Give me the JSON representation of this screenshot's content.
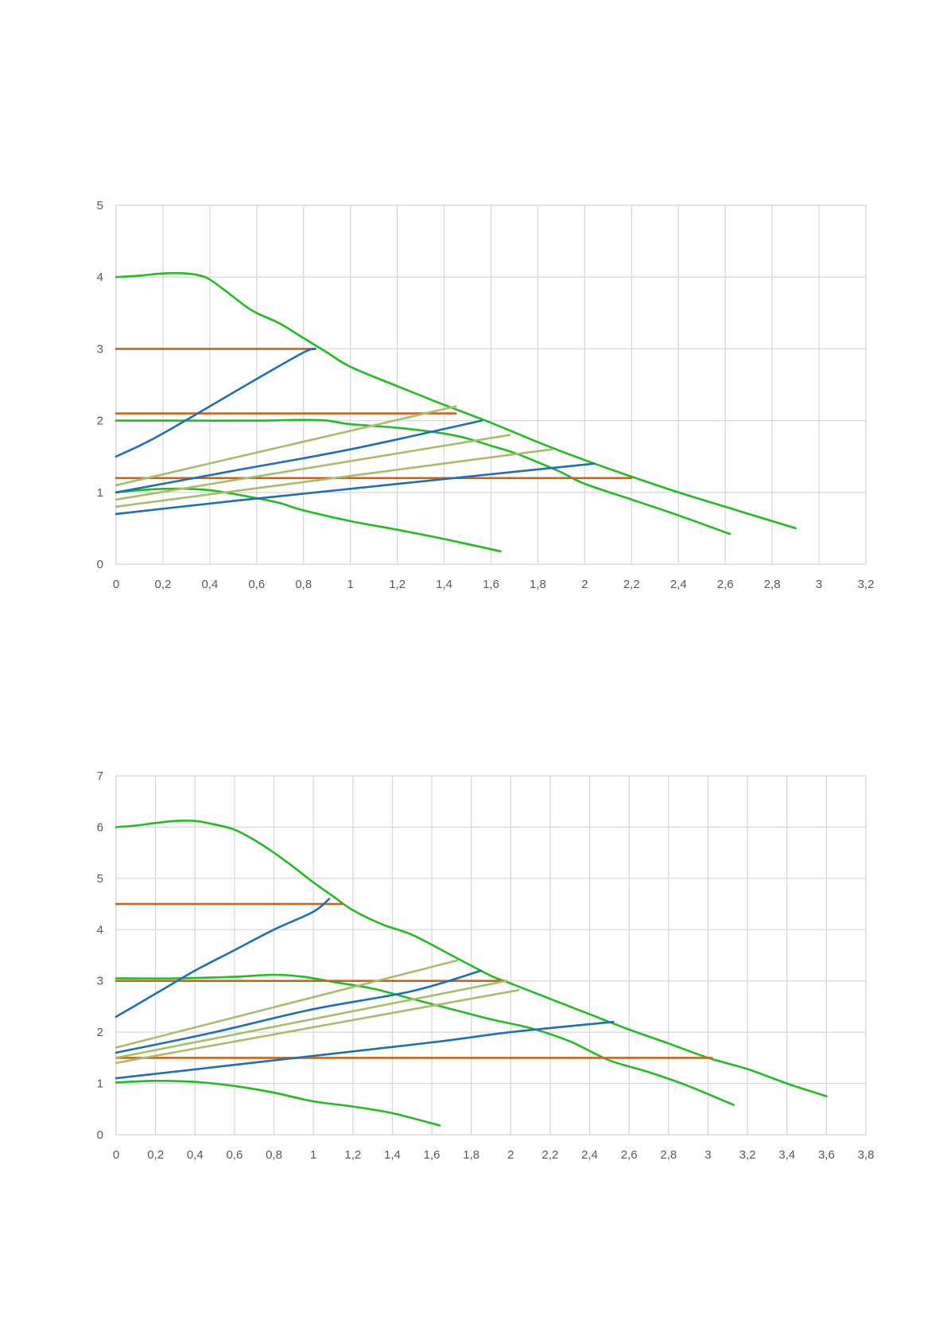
{
  "chart_data": [
    {
      "type": "line",
      "title": "",
      "xlabel": "",
      "ylabel": "",
      "xlim": [
        0,
        3.2
      ],
      "ylim": [
        0,
        5
      ],
      "x_tick_labels": [
        "0",
        "0,2",
        "0,4",
        "0,6",
        "0,8",
        "1",
        "1,2",
        "1,4",
        "1,6",
        "1,8",
        "2",
        "2,2",
        "2,4",
        "2,6",
        "2,8",
        "3",
        "3,2"
      ],
      "y_tick_labels": [
        "0",
        "1",
        "2",
        "3",
        "4",
        "5"
      ],
      "grid": true,
      "legend": "none",
      "series": [
        {
          "color": "#22bb22",
          "points": [
            [
              0,
              4.0
            ],
            [
              0.1,
              4.02
            ],
            [
              0.2,
              4.05
            ],
            [
              0.3,
              4.05
            ],
            [
              0.38,
              4.0
            ],
            [
              0.45,
              3.85
            ],
            [
              0.55,
              3.6
            ],
            [
              0.6,
              3.5
            ],
            [
              0.7,
              3.35
            ],
            [
              0.8,
              3.15
            ],
            [
              0.9,
              2.95
            ],
            [
              1.0,
              2.75
            ],
            [
              1.2,
              2.48
            ],
            [
              1.4,
              2.22
            ],
            [
              1.6,
              1.97
            ],
            [
              1.8,
              1.7
            ],
            [
              2.0,
              1.45
            ],
            [
              2.2,
              1.22
            ],
            [
              2.4,
              1.0
            ],
            [
              2.6,
              0.8
            ],
            [
              2.8,
              0.6
            ],
            [
              2.9,
              0.5
            ]
          ]
        },
        {
          "color": "#22bb22",
          "points": [
            [
              0,
              2.0
            ],
            [
              0.3,
              2.0
            ],
            [
              0.6,
              2.0
            ],
            [
              0.8,
              2.01
            ],
            [
              0.9,
              2.0
            ],
            [
              1.0,
              1.95
            ],
            [
              1.2,
              1.9
            ],
            [
              1.4,
              1.82
            ],
            [
              1.5,
              1.75
            ],
            [
              1.6,
              1.65
            ],
            [
              1.7,
              1.55
            ],
            [
              1.8,
              1.42
            ],
            [
              1.9,
              1.28
            ],
            [
              2.0,
              1.12
            ],
            [
              2.2,
              0.9
            ],
            [
              2.4,
              0.68
            ],
            [
              2.62,
              0.42
            ]
          ]
        },
        {
          "color": "#22bb22",
          "points": [
            [
              0,
              1.0
            ],
            [
              0.1,
              1.03
            ],
            [
              0.2,
              1.05
            ],
            [
              0.3,
              1.05
            ],
            [
              0.4,
              1.03
            ],
            [
              0.5,
              0.98
            ],
            [
              0.6,
              0.92
            ],
            [
              0.7,
              0.85
            ],
            [
              0.8,
              0.75
            ],
            [
              1.0,
              0.6
            ],
            [
              1.2,
              0.48
            ],
            [
              1.4,
              0.35
            ],
            [
              1.64,
              0.18
            ]
          ]
        },
        {
          "color": "#c8651a",
          "points": [
            [
              0,
              3.0
            ],
            [
              0.85,
              3.0
            ]
          ]
        },
        {
          "color": "#c8651a",
          "points": [
            [
              0,
              2.1
            ],
            [
              1.45,
              2.1
            ]
          ]
        },
        {
          "color": "#c8651a",
          "points": [
            [
              0,
              1.2
            ],
            [
              2.2,
              1.2
            ]
          ]
        },
        {
          "color": "#1f6fb5",
          "points": [
            [
              0,
              1.5
            ],
            [
              0.1,
              1.65
            ],
            [
              0.2,
              1.82
            ],
            [
              0.4,
              2.2
            ],
            [
              0.6,
              2.58
            ],
            [
              0.8,
              2.95
            ],
            [
              0.85,
              3.0
            ]
          ]
        },
        {
          "color": "#1f6fb5",
          "points": [
            [
              0,
              1.0
            ],
            [
              0.5,
              1.3
            ],
            [
              1.0,
              1.6
            ],
            [
              1.56,
              2.0
            ]
          ]
        },
        {
          "color": "#1f6fb5",
          "points": [
            [
              0,
              0.7
            ],
            [
              0.5,
              0.88
            ],
            [
              1.0,
              1.05
            ],
            [
              1.5,
              1.22
            ],
            [
              2.04,
              1.4
            ]
          ]
        },
        {
          "color": "#a8bc6a",
          "points": [
            [
              0,
              1.1
            ],
            [
              1.45,
              2.2
            ]
          ]
        },
        {
          "color": "#a8bc6a",
          "points": [
            [
              0,
              0.9
            ],
            [
              1.68,
              1.8
            ]
          ]
        },
        {
          "color": "#a8bc6a",
          "points": [
            [
              0,
              0.8
            ],
            [
              1.86,
              1.6
            ]
          ]
        }
      ]
    },
    {
      "type": "line",
      "title": "",
      "xlabel": "",
      "ylabel": "",
      "xlim": [
        0,
        3.8
      ],
      "ylim": [
        0,
        7
      ],
      "x_tick_labels": [
        "0",
        "0,2",
        "0,4",
        "0,6",
        "0,8",
        "1",
        "1,2",
        "1,4",
        "1,6",
        "1,8",
        "2",
        "2,2",
        "2,4",
        "2,6",
        "2,8",
        "3",
        "3,2",
        "3,4",
        "3,6",
        "3,8"
      ],
      "y_tick_labels": [
        "0",
        "1",
        "2",
        "3",
        "4",
        "5",
        "6",
        "7"
      ],
      "grid": true,
      "legend": "none",
      "series": [
        {
          "color": "#22bb22",
          "points": [
            [
              0,
              6.0
            ],
            [
              0.1,
              6.03
            ],
            [
              0.2,
              6.08
            ],
            [
              0.3,
              6.12
            ],
            [
              0.4,
              6.12
            ],
            [
              0.5,
              6.05
            ],
            [
              0.6,
              5.95
            ],
            [
              0.7,
              5.75
            ],
            [
              0.8,
              5.5
            ],
            [
              0.9,
              5.22
            ],
            [
              1.0,
              4.92
            ],
            [
              1.1,
              4.65
            ],
            [
              1.2,
              4.38
            ],
            [
              1.35,
              4.1
            ],
            [
              1.5,
              3.9
            ],
            [
              1.7,
              3.5
            ],
            [
              1.9,
              3.1
            ],
            [
              2.0,
              2.95
            ],
            [
              2.2,
              2.65
            ],
            [
              2.4,
              2.35
            ],
            [
              2.6,
              2.05
            ],
            [
              2.8,
              1.78
            ],
            [
              3.0,
              1.5
            ],
            [
              3.2,
              1.28
            ],
            [
              3.4,
              1.0
            ],
            [
              3.6,
              0.75
            ]
          ]
        },
        {
          "color": "#22bb22",
          "points": [
            [
              0,
              3.05
            ],
            [
              0.3,
              3.05
            ],
            [
              0.6,
              3.08
            ],
            [
              0.8,
              3.12
            ],
            [
              0.95,
              3.08
            ],
            [
              1.1,
              2.98
            ],
            [
              1.3,
              2.85
            ],
            [
              1.5,
              2.65
            ],
            [
              1.7,
              2.45
            ],
            [
              1.9,
              2.25
            ],
            [
              2.1,
              2.08
            ],
            [
              2.3,
              1.82
            ],
            [
              2.5,
              1.45
            ],
            [
              2.7,
              1.22
            ],
            [
              2.9,
              0.95
            ],
            [
              3.13,
              0.58
            ]
          ]
        },
        {
          "color": "#22bb22",
          "points": [
            [
              0,
              1.02
            ],
            [
              0.2,
              1.05
            ],
            [
              0.4,
              1.03
            ],
            [
              0.6,
              0.95
            ],
            [
              0.8,
              0.82
            ],
            [
              1.0,
              0.65
            ],
            [
              1.2,
              0.55
            ],
            [
              1.4,
              0.42
            ],
            [
              1.64,
              0.18
            ]
          ]
        },
        {
          "color": "#c8651a",
          "points": [
            [
              0,
              4.5
            ],
            [
              1.15,
              4.5
            ]
          ]
        },
        {
          "color": "#c8651a",
          "points": [
            [
              0,
              3.0
            ],
            [
              1.98,
              3.0
            ]
          ]
        },
        {
          "color": "#c8651a",
          "points": [
            [
              0,
              1.5
            ],
            [
              3.02,
              1.5
            ]
          ]
        },
        {
          "color": "#1f6fb5",
          "points": [
            [
              0,
              2.3
            ],
            [
              0.2,
              2.75
            ],
            [
              0.4,
              3.2
            ],
            [
              0.6,
              3.6
            ],
            [
              0.8,
              4.0
            ],
            [
              1.0,
              4.35
            ],
            [
              1.08,
              4.6
            ]
          ]
        },
        {
          "color": "#1f6fb5",
          "points": [
            [
              0,
              1.6
            ],
            [
              0.5,
              2.0
            ],
            [
              1.0,
              2.45
            ],
            [
              1.5,
              2.8
            ],
            [
              1.85,
              3.2
            ]
          ]
        },
        {
          "color": "#1f6fb5",
          "points": [
            [
              0,
              1.1
            ],
            [
              0.8,
              1.45
            ],
            [
              1.6,
              1.8
            ],
            [
              2.0,
              2.0
            ],
            [
              2.52,
              2.2
            ]
          ]
        },
        {
          "color": "#a8bc6a",
          "points": [
            [
              0,
              1.7
            ],
            [
              1.73,
              3.4
            ]
          ]
        },
        {
          "color": "#a8bc6a",
          "points": [
            [
              0,
              1.5
            ],
            [
              1.98,
              3.0
            ]
          ]
        },
        {
          "color": "#a8bc6a",
          "points": [
            [
              0,
              1.4
            ],
            [
              2.04,
              2.82
            ]
          ]
        }
      ]
    }
  ]
}
